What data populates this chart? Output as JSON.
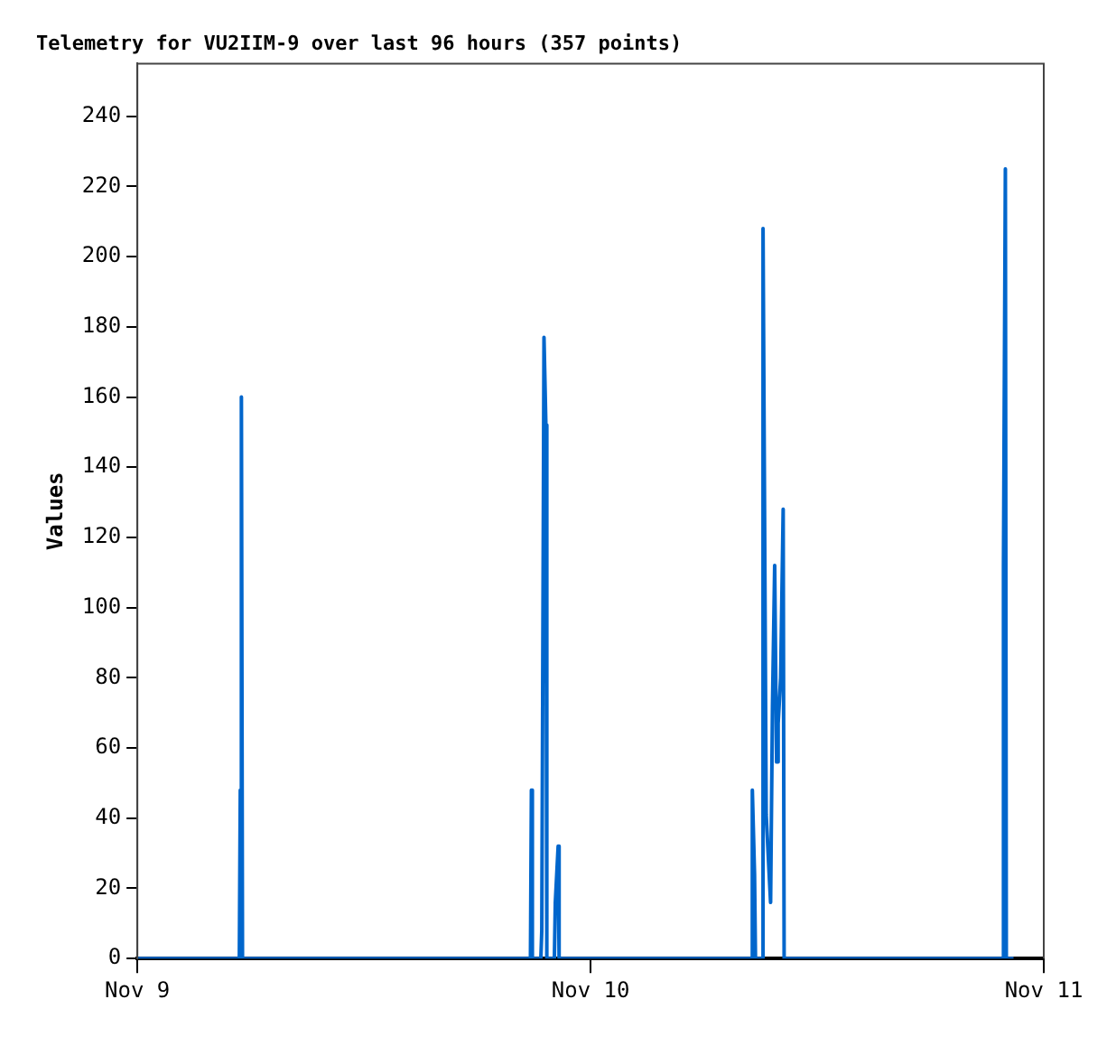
{
  "chart_data": {
    "type": "line",
    "title": "Telemetry for VU2IIM-9 over last 96 hours (357 points)",
    "ylabel": "Values",
    "xlim": [
      "--11-09",
      "--11-11"
    ],
    "xticks": [
      {
        "value": "--11-09",
        "label": "Nov 9"
      },
      {
        "value": "--11-10",
        "label": "Nov 10"
      },
      {
        "value": "--11-11",
        "label": "Nov 11"
      }
    ],
    "ylim": [
      0,
      255
    ],
    "yticks": [
      0,
      20,
      40,
      60,
      80,
      100,
      120,
      140,
      160,
      180,
      200,
      220,
      240
    ],
    "grid": false,
    "legend": false,
    "marker": "none",
    "line_style": "solid",
    "series": [
      {
        "color": "#0066cc",
        "x": [
          "--11-09T00:00",
          "--11-09T05:24",
          "--11-09T05:27",
          "--11-09T05:30",
          "--11-09T05:31",
          "--11-09T05:34",
          "--11-09T20:49",
          "--11-09T20:52",
          "--11-09T20:55",
          "--11-09T21:22",
          "--11-09T21:25",
          "--11-09T21:32",
          "--11-09T21:38",
          "--11-09T21:41",
          "--11-09T22:05",
          "--11-09T22:08",
          "--11-09T22:17",
          "--11-09T22:20",
          "--11-10T08:31",
          "--11-10T08:34",
          "--11-10T08:41",
          "--11-10T08:44",
          "--11-10T09:05",
          "--11-10T09:08",
          "--11-10T09:18",
          "--11-10T09:32",
          "--11-10T09:38",
          "--11-10T09:45",
          "--11-10T09:51",
          "--11-10T09:56",
          "--11-10T10:04",
          "--11-10T10:12",
          "--11-10T10:15",
          "--11-10T21:49",
          "--11-10T21:52",
          "--11-10T21:58",
          "--11-10T22:01",
          "--11-10T22:24"
        ],
        "values": [
          0,
          0,
          48,
          25,
          160,
          0,
          0,
          48,
          0,
          0,
          8,
          177,
          152,
          0,
          0,
          16,
          32,
          0,
          0,
          48,
          24,
          0,
          0,
          208,
          41,
          16,
          72,
          112,
          56,
          67,
          80,
          128,
          0,
          0,
          112,
          225,
          0,
          0
        ]
      }
    ]
  }
}
